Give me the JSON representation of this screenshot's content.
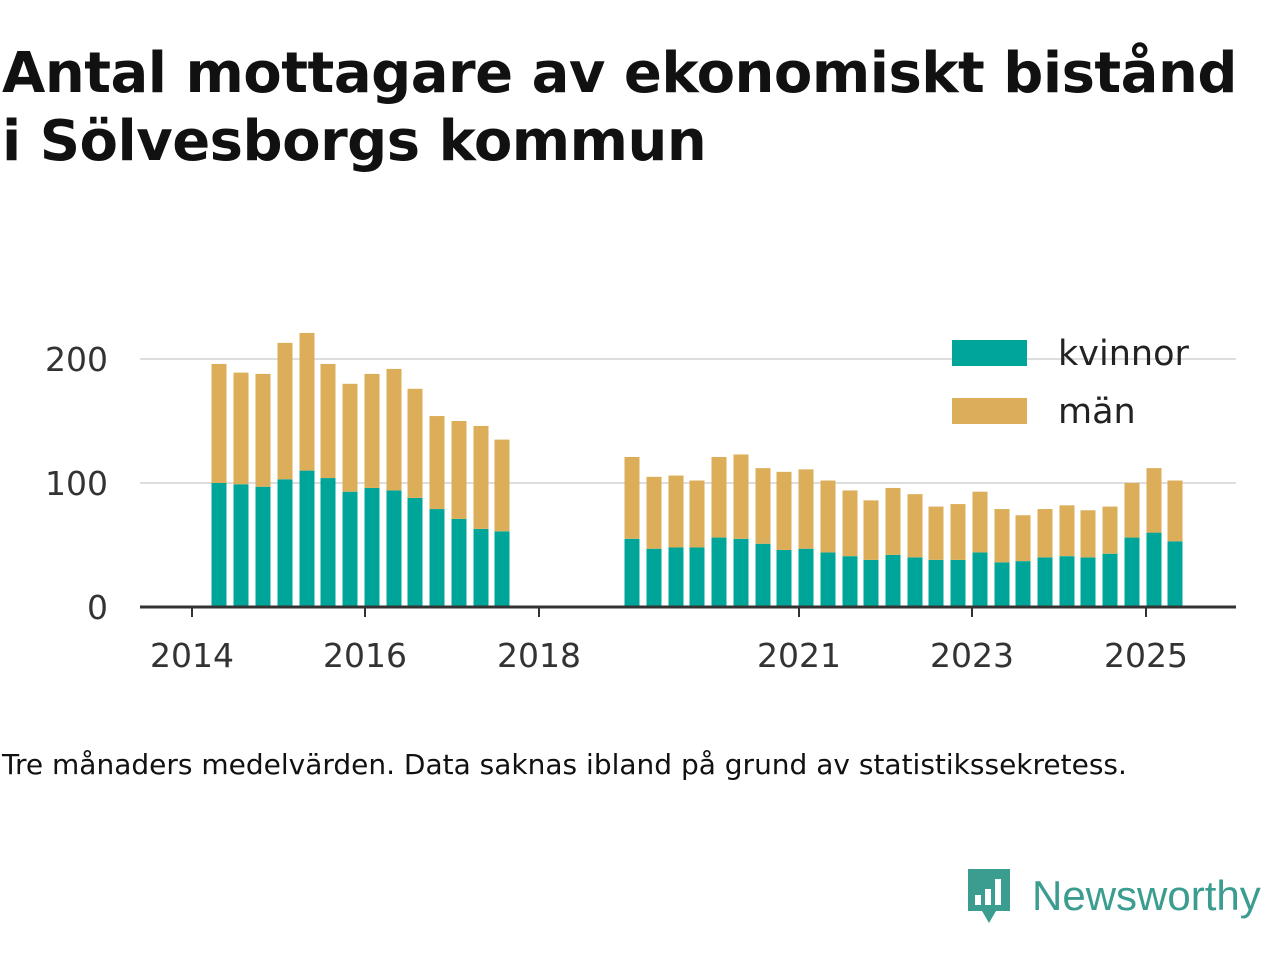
{
  "title_lines": [
    "Antal mottagare av ekonomiskt bistånd",
    "i Sölvesborgs kommun"
  ],
  "caption": "Tre månaders medelvärden. Data saknas ibland på grund av statistikssekretess.",
  "brand": {
    "name": "Newsworthy",
    "icon": "newsworthy-logo-icon",
    "color": "#3a9d8f"
  },
  "colors": {
    "kvinnor": "#00a59a",
    "man": "#dcae5a",
    "grid": "#dddddd",
    "axis": "#333333"
  },
  "chart_data": {
    "type": "bar",
    "stacked": true,
    "x_ticks": [
      "2014",
      "2016",
      "2018",
      "2021",
      "2023",
      "2025"
    ],
    "y_ticks": [
      "0",
      "100",
      "200"
    ],
    "ylim": [
      0,
      230
    ],
    "legend_position": "top-right",
    "series": [
      {
        "name": "kvinnor",
        "color": "#00a59a",
        "values": [
          100,
          99,
          97,
          103,
          110,
          104,
          93,
          96,
          94,
          88,
          79,
          71,
          63,
          61,
          55,
          47,
          48,
          48,
          56,
          55,
          51,
          46,
          47,
          44,
          41,
          38,
          42,
          40,
          38,
          38,
          44,
          36,
          37,
          40,
          41,
          40,
          43,
          56,
          60,
          53
        ]
      },
      {
        "name": "män",
        "color": "#dcae5a",
        "values": [
          96,
          90,
          91,
          110,
          111,
          92,
          87,
          92,
          98,
          88,
          75,
          79,
          83,
          74,
          66,
          58,
          58,
          54,
          65,
          68,
          61,
          63,
          64,
          58,
          53,
          48,
          54,
          51,
          43,
          45,
          49,
          43,
          37,
          39,
          41,
          38,
          38,
          44,
          52,
          49
        ]
      }
    ]
  }
}
